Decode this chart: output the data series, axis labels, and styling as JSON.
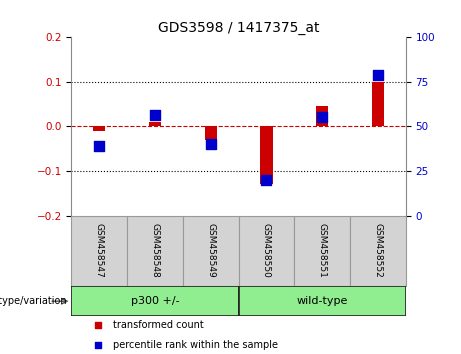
{
  "title": "GDS3598 / 1417375_at",
  "samples": [
    "GSM458547",
    "GSM458548",
    "GSM458549",
    "GSM458550",
    "GSM458551",
    "GSM458552"
  ],
  "groups": [
    {
      "name": "p300 +/-",
      "samples_idx": [
        0,
        1,
        2
      ]
    },
    {
      "name": "wild-type",
      "samples_idx": [
        3,
        4,
        5
      ]
    }
  ],
  "red_values": [
    -0.01,
    0.01,
    -0.03,
    -0.13,
    0.045,
    0.1
  ],
  "blue_values": [
    -0.045,
    0.025,
    -0.04,
    -0.12,
    0.02,
    0.115
  ],
  "ylim_left": [
    -0.2,
    0.2
  ],
  "ylim_right": [
    0,
    100
  ],
  "yticks_left": [
    -0.2,
    -0.1,
    0.0,
    0.1,
    0.2
  ],
  "yticks_right": [
    0,
    25,
    50,
    75,
    100
  ],
  "group_label": "genotype/variation",
  "legend_red": "transformed count",
  "legend_blue": "percentile rank within the sample",
  "red_color": "#CC0000",
  "blue_color": "#0000CC",
  "dotted_line_color": "#000000",
  "zero_line_color": "#CC0000",
  "bg_plot": "#FFFFFF",
  "bg_label": "#D3D3D3",
  "bg_group": "#90EE90"
}
